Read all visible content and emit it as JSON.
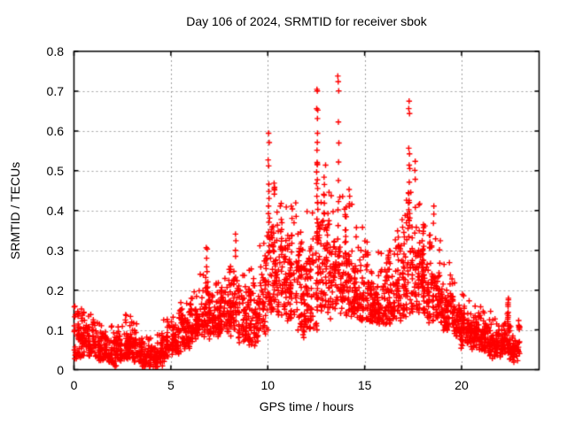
{
  "style": {
    "background": "#ffffff",
    "marker_color": "#ff0000",
    "grid_color": "#a0a0a0",
    "axis_color": "#000000",
    "text_color": "#000000"
  },
  "chart_data": {
    "type": "scatter",
    "title": "Day 106 of 2024, SRMTID for receiver sbok",
    "xlabel": "GPS time / hours",
    "ylabel": "SRMTID / TECUs",
    "xlim": [
      0,
      24
    ],
    "ylim": [
      0,
      0.8
    ],
    "grid": true,
    "legend": "none",
    "marker": "plus",
    "series_name": "SRMTID",
    "xticks": [
      {
        "value": 0,
        "label": "0"
      },
      {
        "value": 5,
        "label": "5"
      },
      {
        "value": 10,
        "label": "10"
      },
      {
        "value": 15,
        "label": "15"
      },
      {
        "value": 20,
        "label": "20"
      }
    ],
    "yticks": [
      {
        "value": 0.0,
        "label": "0"
      },
      {
        "value": 0.1,
        "label": "0.1"
      },
      {
        "value": 0.2,
        "label": "0.2"
      },
      {
        "value": 0.3,
        "label": "0.3"
      },
      {
        "value": 0.4,
        "label": "0.4"
      },
      {
        "value": 0.5,
        "label": "0.5"
      },
      {
        "value": 0.6,
        "label": "0.6"
      },
      {
        "value": 0.7,
        "label": "0.7"
      },
      {
        "value": 0.8,
        "label": "0.8"
      }
    ],
    "data_span_hours": [
      0.0,
      23.05
    ],
    "envelope_bins": {
      "description": "Dense scatter envelope read from plot: [hour_start, min_value, max_value, point_count] per 0.5 h bin",
      "bin_width_hours": 0.5,
      "bins": [
        [
          0.0,
          0.03,
          0.16,
          60
        ],
        [
          0.5,
          0.04,
          0.14,
          60
        ],
        [
          1.0,
          0.03,
          0.12,
          58
        ],
        [
          1.5,
          0.02,
          0.11,
          58
        ],
        [
          2.0,
          0.02,
          0.11,
          58
        ],
        [
          2.5,
          0.03,
          0.14,
          58
        ],
        [
          3.0,
          0.02,
          0.12,
          56
        ],
        [
          3.5,
          0.01,
          0.08,
          54
        ],
        [
          4.0,
          0.01,
          0.09,
          54
        ],
        [
          4.5,
          0.03,
          0.13,
          58
        ],
        [
          5.0,
          0.05,
          0.15,
          60
        ],
        [
          5.5,
          0.06,
          0.17,
          60
        ],
        [
          6.0,
          0.08,
          0.2,
          62
        ],
        [
          6.5,
          0.09,
          0.24,
          62
        ],
        [
          7.0,
          0.09,
          0.22,
          62
        ],
        [
          7.5,
          0.1,
          0.23,
          62
        ],
        [
          8.0,
          0.1,
          0.26,
          62
        ],
        [
          8.5,
          0.08,
          0.24,
          62
        ],
        [
          9.0,
          0.07,
          0.26,
          62
        ],
        [
          9.5,
          0.1,
          0.32,
          62
        ],
        [
          10.0,
          0.15,
          0.46,
          64
        ],
        [
          10.5,
          0.14,
          0.42,
          64
        ],
        [
          11.0,
          0.13,
          0.42,
          64
        ],
        [
          11.5,
          0.09,
          0.35,
          64
        ],
        [
          12.0,
          0.1,
          0.4,
          64
        ],
        [
          12.5,
          0.15,
          0.52,
          64
        ],
        [
          13.0,
          0.15,
          0.45,
          60
        ],
        [
          13.5,
          0.15,
          0.44,
          56
        ],
        [
          14.0,
          0.14,
          0.42,
          64
        ],
        [
          14.5,
          0.13,
          0.36,
          64
        ],
        [
          15.0,
          0.12,
          0.33,
          64
        ],
        [
          15.5,
          0.12,
          0.3,
          64
        ],
        [
          16.0,
          0.12,
          0.3,
          64
        ],
        [
          16.5,
          0.13,
          0.36,
          64
        ],
        [
          17.0,
          0.15,
          0.46,
          64
        ],
        [
          17.5,
          0.15,
          0.42,
          64
        ],
        [
          18.0,
          0.13,
          0.37,
          64
        ],
        [
          18.5,
          0.12,
          0.33,
          64
        ],
        [
          19.0,
          0.1,
          0.27,
          62
        ],
        [
          19.5,
          0.09,
          0.22,
          62
        ],
        [
          20.0,
          0.07,
          0.19,
          62
        ],
        [
          20.5,
          0.06,
          0.16,
          62
        ],
        [
          21.0,
          0.05,
          0.15,
          60
        ],
        [
          21.5,
          0.04,
          0.13,
          58
        ],
        [
          22.0,
          0.04,
          0.12,
          56
        ],
        [
          22.5,
          0.03,
          0.11,
          52
        ]
      ]
    },
    "spikes": [
      {
        "hour": 6.85,
        "values": [
          0.31,
          0.3,
          0.28,
          0.26,
          0.25
        ]
      },
      {
        "hour": 8.35,
        "values": [
          0.35,
          0.33,
          0.3,
          0.28
        ]
      },
      {
        "hour": 10.05,
        "values": [
          0.59,
          0.57,
          0.52,
          0.5,
          0.47,
          0.45,
          0.43,
          0.41,
          0.39,
          0.37,
          0.35,
          0.33,
          0.31,
          0.29
        ]
      },
      {
        "hour": 10.35,
        "values": [
          0.47,
          0.45,
          0.43
        ]
      },
      {
        "hour": 12.55,
        "values": [
          0.71,
          0.7,
          0.66,
          0.65,
          0.63,
          0.6,
          0.57,
          0.55,
          0.53,
          0.52,
          0.5,
          0.48,
          0.47,
          0.45,
          0.44,
          0.42,
          0.41,
          0.4,
          0.38,
          0.37,
          0.35,
          0.34,
          0.33,
          0.32
        ]
      },
      {
        "hour": 12.9,
        "values": [
          0.49,
          0.47,
          0.44,
          0.42,
          0.4
        ]
      },
      {
        "hour": 13.65,
        "values": [
          0.74,
          0.73,
          0.7,
          0.63,
          0.58,
          0.52,
          0.47,
          0.42,
          0.3,
          0.26
        ]
      },
      {
        "hour": 14.2,
        "values": [
          0.46,
          0.44,
          0.42
        ]
      },
      {
        "hour": 17.3,
        "values": [
          0.68,
          0.66,
          0.64,
          0.56,
          0.54,
          0.52,
          0.5,
          0.47,
          0.45,
          0.43,
          0.41,
          0.39,
          0.37
        ]
      },
      {
        "hour": 17.6,
        "values": [
          0.52,
          0.5,
          0.48
        ]
      },
      {
        "hour": 18.55,
        "values": [
          0.41,
          0.39,
          0.37
        ]
      },
      {
        "hour": 22.4,
        "values": [
          0.18,
          0.17,
          0.17,
          0.16,
          0.16,
          0.15,
          0.14,
          0.14,
          0.13,
          0.12,
          0.11
        ]
      },
      {
        "hour": 22.95,
        "values": [
          0.13,
          0.11,
          0.1,
          0.08,
          0.06,
          0.05
        ]
      }
    ]
  }
}
